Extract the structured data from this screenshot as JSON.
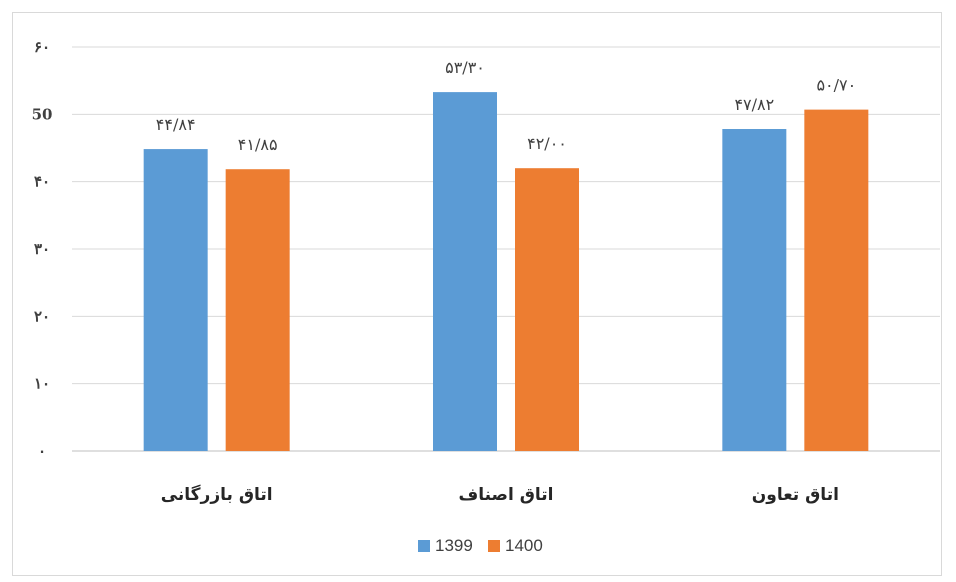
{
  "chart_data": {
    "type": "bar",
    "categories": [
      "اتاق بازرگانی",
      "اتاق اصناف",
      "اتاق تعاون"
    ],
    "series": [
      {
        "name": "1399",
        "values": [
          44.84,
          53.3,
          47.82
        ],
        "labels": [
          "۴۴/۸۴",
          "۵۳/۳۰",
          "۴۷/۸۲"
        ],
        "color": "#5b9bd5"
      },
      {
        "name": "1400",
        "values": [
          41.85,
          42.0,
          50.7
        ],
        "labels": [
          "۴۱/۸۵",
          "۴۲/۰۰",
          "۵۰/۷۰"
        ],
        "color": "#ed7d31"
      }
    ],
    "ylim": [
      0,
      60
    ],
    "yticks": [
      0,
      10,
      20,
      30,
      40,
      50,
      60
    ],
    "ytick_labels": [
      "۰",
      "۱۰",
      "۲۰",
      "۳۰",
      "۴۰",
      "50",
      "۶۰"
    ],
    "grid": true,
    "legend_position": "bottom",
    "title": "",
    "xlabel": "",
    "ylabel": ""
  }
}
